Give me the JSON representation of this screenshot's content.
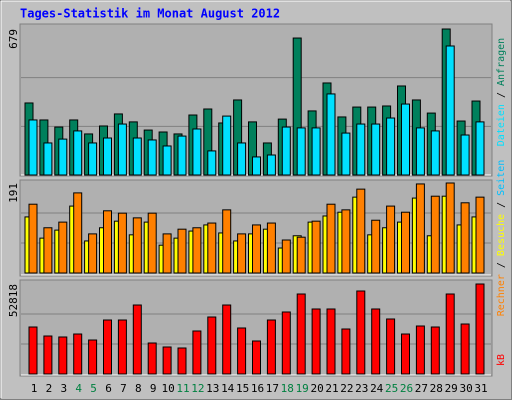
{
  "chart_data": [
    {
      "type": "bar",
      "title": "Tages-Statistik im Monat August 2012",
      "ylim": [
        0,
        679
      ],
      "yticks": [
        679
      ],
      "grid_divisions": 3,
      "legend_separator": " / ",
      "series": [
        {
          "name": "Anfragen",
          "color": "#00805c",
          "values": [
            335,
            256,
            223,
            256,
            191,
            228,
            284,
            247,
            209,
            200,
            191,
            279,
            307,
            242,
            349,
            247,
            149,
            260,
            637,
            298,
            428,
            270,
            316,
            316,
            321,
            414,
            349,
            288,
            679,
            251,
            344
          ]
        },
        {
          "name": "Dateien",
          "color": "#00e0ff",
          "values": [
            256,
            149,
            167,
            205,
            149,
            172,
            237,
            172,
            163,
            135,
            181,
            214,
            112,
            274,
            149,
            84,
            93,
            223,
            219,
            219,
            377,
            195,
            237,
            237,
            265,
            330,
            219,
            205,
            600,
            186,
            247
          ]
        }
      ]
    },
    {
      "type": "bar",
      "ylim": [
        0,
        191
      ],
      "yticks": [
        191
      ],
      "grid_divisions": 3,
      "legend_separator": " / ",
      "series": [
        {
          "name": "Seiten",
          "color": "#00c0ff",
          "values": [
            null,
            null,
            null,
            null,
            null,
            null,
            null,
            null,
            null,
            null,
            null,
            null,
            null,
            null,
            null,
            null,
            null,
            null,
            null,
            null,
            null,
            null,
            null,
            null,
            null,
            null,
            null,
            null,
            null,
            null,
            null
          ]
        },
        {
          "name": "Besuche",
          "color": "#ffff00",
          "values": [
            119,
            74,
            91,
            142,
            68,
            96,
            110,
            81,
            108,
            59,
            74,
            89,
            102,
            85,
            68,
            83,
            93,
            53,
            79,
            108,
            121,
            129,
            161,
            81,
            96,
            108,
            159,
            79,
            163,
            102,
            119
          ]
        },
        {
          "name": "Rechner",
          "color": "#ff8000",
          "values": [
            146,
            96,
            108,
            170,
            83,
            132,
            127,
            117,
            127,
            83,
            93,
            96,
            106,
            134,
            83,
            102,
            106,
            70,
            76,
            110,
            146,
            134,
            178,
            112,
            142,
            129,
            189,
            163,
            191,
            149,
            161
          ]
        }
      ]
    },
    {
      "type": "bar",
      "ylim": [
        0,
        52818
      ],
      "yticks": [
        52818
      ],
      "grid_divisions": 3,
      "legend_separator": " / ",
      "categories": [
        "1",
        "2",
        "3",
        "4",
        "5",
        "6",
        "7",
        "8",
        "9",
        "10",
        "11",
        "12",
        "13",
        "14",
        "15",
        "16",
        "17",
        "18",
        "19",
        "20",
        "21",
        "22",
        "23",
        "24",
        "25",
        "26",
        "27",
        "28",
        "29",
        "30",
        "31"
      ],
      "highlight_indices": [
        3,
        4,
        10,
        11,
        17,
        18,
        24,
        25
      ],
      "highlight_color": "#008040",
      "series": [
        {
          "name": "kB",
          "color": "#ff0000",
          "values": [
            27580,
            22300,
            21720,
            23470,
            19950,
            31690,
            31690,
            40490,
            18190,
            15850,
            15260,
            25240,
            33450,
            40490,
            27000,
            19370,
            31690,
            36390,
            46950,
            38150,
            38150,
            26410,
            48710,
            38150,
            32280,
            23470,
            28170,
            27580,
            46950,
            29340,
            52818
          ]
        }
      ]
    }
  ]
}
